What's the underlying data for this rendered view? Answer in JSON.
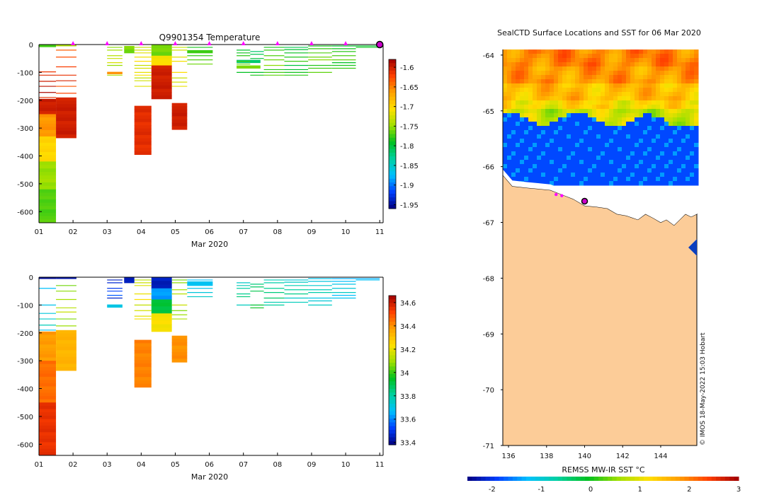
{
  "chart_data": [
    {
      "type": "heatmap",
      "panel": "temperature-section",
      "title": "Q9901354  Temperature",
      "xlabel": "Mar 2020",
      "x_ticks": [
        "01",
        "02",
        "03",
        "04",
        "05",
        "06",
        "07",
        "08",
        "09",
        "10",
        "11"
      ],
      "xlim": [
        1.0,
        11.1
      ],
      "y_ticks": [
        0,
        -100,
        -200,
        -300,
        -400,
        -500,
        -600
      ],
      "ylim": [
        -640,
        0
      ],
      "colorbar": {
        "ticks": [
          -1.6,
          -1.65,
          -1.7,
          -1.75,
          -1.8,
          -1.85,
          -1.9,
          -1.95
        ],
        "range": [
          -1.96,
          -1.58
        ],
        "colors": [
          "#00007f",
          "#0040ff",
          "#00c0ff",
          "#00d0a0",
          "#00c020",
          "#a0e000",
          "#ffe000",
          "#ffa000",
          "#ff4000",
          "#a00000"
        ]
      },
      "surface_markers_days": [
        2,
        3,
        4,
        5,
        6,
        7,
        8,
        9,
        10
      ],
      "current_profile_day": 11.0,
      "profiles": [
        {
          "x0": 1.0,
          "x1": 1.5,
          "d0": 0,
          "d1": 8,
          "v": -1.77
        },
        {
          "x0": 1.0,
          "x1": 1.5,
          "d0": 195,
          "d1": 250,
          "v": -1.6
        },
        {
          "x0": 1.0,
          "x1": 1.5,
          "d0": 250,
          "d1": 330,
          "v": -1.66
        },
        {
          "x0": 1.0,
          "x1": 1.5,
          "d0": 330,
          "d1": 420,
          "v": -1.7
        },
        {
          "x0": 1.0,
          "x1": 1.5,
          "d0": 420,
          "d1": 520,
          "v": -1.75
        },
        {
          "x0": 1.0,
          "x1": 1.5,
          "d0": 520,
          "d1": 640,
          "v": -1.77
        },
        {
          "x0": 1.5,
          "x1": 2.1,
          "d0": 0,
          "d1": 5,
          "v": -1.74
        },
        {
          "x0": 1.5,
          "x1": 2.1,
          "d0": 190,
          "d1": 335,
          "v": -1.6
        },
        {
          "x0": 3.5,
          "x1": 3.8,
          "d0": 5,
          "d1": 30,
          "v": -1.76
        },
        {
          "x0": 3.0,
          "x1": 3.45,
          "d0": 98,
          "d1": 105,
          "v": -1.66
        },
        {
          "x0": 3.8,
          "x1": 4.3,
          "d0": 220,
          "d1": 395,
          "v": -1.61
        },
        {
          "x0": 4.3,
          "x1": 4.9,
          "d0": 0,
          "d1": 40,
          "v": -1.76
        },
        {
          "x0": 4.3,
          "x1": 4.9,
          "d0": 40,
          "d1": 75,
          "v": -1.71
        },
        {
          "x0": 4.3,
          "x1": 4.9,
          "d0": 75,
          "d1": 195,
          "v": -1.6
        },
        {
          "x0": 4.9,
          "x1": 5.35,
          "d0": 210,
          "d1": 305,
          "v": -1.6
        },
        {
          "x0": 5.35,
          "x1": 6.1,
          "d0": 20,
          "d1": 30,
          "v": -1.78
        },
        {
          "x0": 6.8,
          "x1": 7.5,
          "d0": 55,
          "d1": 65,
          "v": -1.82
        },
        {
          "x0": 6.8,
          "x1": 7.5,
          "d0": 75,
          "d1": 85,
          "v": -1.76
        }
      ],
      "stripes": [
        {
          "x0": 1.0,
          "x1": 1.5,
          "depths": [
            98,
            110,
            132,
            150,
            172,
            190
          ],
          "v": -1.6
        },
        {
          "x0": 1.5,
          "x1": 2.1,
          "depths": [
            20,
            45,
            80,
            110,
            130,
            150,
            175
          ],
          "v": -1.62
        },
        {
          "x0": 3.0,
          "x1": 3.45,
          "depths": [
            10,
            20,
            40,
            50,
            65,
            75,
            110
          ],
          "v": -1.74
        },
        {
          "x0": 3.8,
          "x1": 4.3,
          "depths": [
            10,
            20,
            30,
            45,
            60,
            75,
            85,
            100,
            110,
            120,
            130,
            150
          ],
          "v": -1.72
        },
        {
          "x0": 4.9,
          "x1": 5.35,
          "depths": [
            10,
            20,
            45,
            60,
            100,
            120,
            135,
            150
          ],
          "v": -1.72
        },
        {
          "x0": 5.35,
          "x1": 6.1,
          "depths": [
            10,
            40,
            55,
            70
          ],
          "v": -1.77
        },
        {
          "x0": 6.8,
          "x1": 7.2,
          "depths": [
            20,
            30,
            40,
            60,
            70,
            100
          ],
          "v": -1.78
        },
        {
          "x0": 7.2,
          "x1": 7.6,
          "depths": [
            25,
            35,
            50,
            100,
            110
          ],
          "v": -1.8
        },
        {
          "x0": 7.6,
          "x1": 8.2,
          "depths": [
            10,
            20,
            40,
            55,
            75,
            90,
            100,
            110
          ],
          "v": -1.77
        },
        {
          "x0": 8.2,
          "x1": 8.9,
          "depths": [
            10,
            18,
            30,
            45,
            60,
            75,
            90,
            100,
            110
          ],
          "v": -1.79
        },
        {
          "x0": 8.9,
          "x1": 9.6,
          "depths": [
            5,
            15,
            30,
            45,
            55,
            75,
            85,
            100
          ],
          "v": -1.77
        },
        {
          "x0": 9.6,
          "x1": 10.3,
          "depths": [
            5,
            15,
            25,
            40,
            55,
            65,
            75,
            85
          ],
          "v": -1.78
        },
        {
          "x0": 10.3,
          "x1": 11.0,
          "depths": [
            5,
            10
          ],
          "v": -1.78
        }
      ]
    },
    {
      "type": "heatmap",
      "panel": "salinity-section",
      "title": "",
      "xlabel": "Mar 2020",
      "x_ticks": [
        "01",
        "02",
        "03",
        "04",
        "05",
        "06",
        "07",
        "08",
        "09",
        "10",
        "11"
      ],
      "xlim": [
        1.0,
        11.1
      ],
      "y_ticks": [
        0,
        -100,
        -200,
        -300,
        -400,
        -500,
        -600
      ],
      "ylim": [
        -640,
        0
      ],
      "colorbar": {
        "ticks": [
          34.6,
          34.4,
          34.2,
          34,
          33.8,
          33.6,
          33.4
        ],
        "range": [
          33.38,
          34.66
        ],
        "colors": [
          "#00007f",
          "#0040ff",
          "#00c0ff",
          "#00d0a0",
          "#00c020",
          "#a0e000",
          "#ffe000",
          "#ffa000",
          "#ff4000",
          "#a00000"
        ]
      },
      "profiles": [
        {
          "x0": 1.0,
          "x1": 1.5,
          "d0": 0,
          "d1": 5,
          "v": 33.42
        },
        {
          "x0": 1.0,
          "x1": 1.5,
          "d0": 195,
          "d1": 300,
          "v": 34.38
        },
        {
          "x0": 1.0,
          "x1": 1.5,
          "d0": 300,
          "d1": 450,
          "v": 34.45
        },
        {
          "x0": 1.0,
          "x1": 1.5,
          "d0": 450,
          "d1": 640,
          "v": 34.55
        },
        {
          "x0": 1.5,
          "x1": 2.1,
          "d0": 0,
          "d1": 5,
          "v": 33.42
        },
        {
          "x0": 1.5,
          "x1": 2.1,
          "d0": 190,
          "d1": 335,
          "v": 34.33
        },
        {
          "x0": 3.5,
          "x1": 3.8,
          "d0": 0,
          "d1": 20,
          "v": 33.45
        },
        {
          "x0": 3.0,
          "x1": 3.45,
          "d0": 98,
          "d1": 108,
          "v": 33.72
        },
        {
          "x0": 3.8,
          "x1": 4.3,
          "d0": 225,
          "d1": 395,
          "v": 34.42
        },
        {
          "x0": 4.3,
          "x1": 4.9,
          "d0": 0,
          "d1": 40,
          "v": 33.45
        },
        {
          "x0": 4.3,
          "x1": 4.9,
          "d0": 40,
          "d1": 80,
          "v": 33.62
        },
        {
          "x0": 4.3,
          "x1": 4.9,
          "d0": 80,
          "d1": 130,
          "v": 33.92
        },
        {
          "x0": 4.3,
          "x1": 4.9,
          "d0": 130,
          "d1": 195,
          "v": 34.22
        },
        {
          "x0": 4.9,
          "x1": 5.35,
          "d0": 210,
          "d1": 305,
          "v": 34.4
        },
        {
          "x0": 5.35,
          "x1": 6.1,
          "d0": 15,
          "d1": 30,
          "v": 33.7
        }
      ],
      "stripes": [
        {
          "x0": 1.0,
          "x1": 1.5,
          "depths": [
            40,
            100,
            130,
            150,
            172,
            190
          ],
          "v": 33.72
        },
        {
          "x0": 1.5,
          "x1": 2.1,
          "depths": [
            30,
            50,
            80,
            110,
            125,
            150,
            175
          ],
          "v": 34.1
        },
        {
          "x0": 3.0,
          "x1": 3.45,
          "depths": [
            10,
            20,
            40,
            50,
            65,
            75
          ],
          "v": 33.5
        },
        {
          "x0": 3.8,
          "x1": 4.3,
          "depths": [
            10,
            20,
            30,
            60,
            80,
            100,
            120,
            140,
            150
          ],
          "v": 34.18
        },
        {
          "x0": 4.9,
          "x1": 5.35,
          "depths": [
            10,
            20,
            45,
            60,
            100,
            120,
            135,
            150
          ],
          "v": 34.1
        },
        {
          "x0": 5.35,
          "x1": 6.1,
          "depths": [
            10,
            40,
            55,
            70
          ],
          "v": 33.72
        },
        {
          "x0": 6.8,
          "x1": 7.2,
          "depths": [
            20,
            30,
            40,
            60,
            70,
            100
          ],
          "v": 33.8
        },
        {
          "x0": 7.2,
          "x1": 7.6,
          "depths": [
            25,
            35,
            50,
            100,
            110
          ],
          "v": 33.9
        },
        {
          "x0": 7.6,
          "x1": 8.2,
          "depths": [
            10,
            20,
            40,
            55,
            75,
            90,
            100
          ],
          "v": 33.82
        },
        {
          "x0": 8.2,
          "x1": 8.9,
          "depths": [
            10,
            18,
            30,
            45,
            60,
            75,
            90
          ],
          "v": 33.78
        },
        {
          "x0": 8.9,
          "x1": 9.6,
          "depths": [
            5,
            15,
            30,
            45,
            55,
            75,
            85,
            100
          ],
          "v": 33.74
        },
        {
          "x0": 9.6,
          "x1": 10.3,
          "depths": [
            5,
            15,
            25,
            40,
            55,
            65,
            75
          ],
          "v": 33.7
        },
        {
          "x0": 10.3,
          "x1": 11.0,
          "depths": [
            5,
            10
          ],
          "v": 33.7
        }
      ]
    },
    {
      "type": "heatmap",
      "panel": "sst-map",
      "title": "SealCTD Surface Locations and SST for 06 Mar 2020",
      "colorbar_label": "REMSS MW-IR SST °C",
      "colorbar_ticks": [
        -2,
        -1,
        0,
        1,
        2,
        3
      ],
      "colorbar_range": [
        -2.5,
        3.0
      ],
      "x_ticks": [
        136,
        138,
        140,
        142,
        144
      ],
      "xlim": [
        135.7,
        145.9
      ],
      "y_ticks": [
        -64,
        -65,
        -66,
        -67,
        -68,
        -69,
        -70,
        -71
      ],
      "ylim": [
        -71,
        -63.9
      ],
      "sst_bands": [
        {
          "lat_top": -63.9,
          "lat_bot": -64.2,
          "v": 1.95
        },
        {
          "lat_top": -64.2,
          "lat_bot": -64.5,
          "v": 1.8
        },
        {
          "lat_top": -64.5,
          "lat_bot": -64.75,
          "v": 1.5
        },
        {
          "lat_top": -64.75,
          "lat_bot": -64.95,
          "v": 1.2
        },
        {
          "lat_top": -64.95,
          "lat_bot": -65.2,
          "v": 0.8
        },
        {
          "lat_top": -65.2,
          "lat_bot": -66.3,
          "v": -1.8
        }
      ],
      "coastline_lon": [
        135.7,
        136.2,
        137.0,
        137.6,
        138.2,
        138.8,
        139.4,
        140.0,
        140.6,
        141.2,
        141.7,
        142.2,
        142.8,
        143.2,
        143.6,
        144.0,
        144.3,
        144.7,
        145.0,
        145.3,
        145.6,
        145.9
      ],
      "coastline_lat": [
        -66.15,
        -66.35,
        -66.38,
        -66.4,
        -66.42,
        -66.5,
        -66.58,
        -66.7,
        -66.72,
        -66.75,
        -66.85,
        -66.88,
        -66.95,
        -66.85,
        -66.92,
        -67.0,
        -66.95,
        -67.05,
        -66.95,
        -66.85,
        -66.9,
        -66.85
      ],
      "seal_locations": [
        {
          "lon": 138.5,
          "lat": -66.5,
          "type": "track"
        },
        {
          "lon": 138.8,
          "lat": -66.52,
          "type": "track"
        },
        {
          "lon": 140.0,
          "lat": -66.62,
          "type": "current"
        }
      ],
      "credit": "© IMOS 18-May-2022 15:03 Hobart"
    }
  ]
}
